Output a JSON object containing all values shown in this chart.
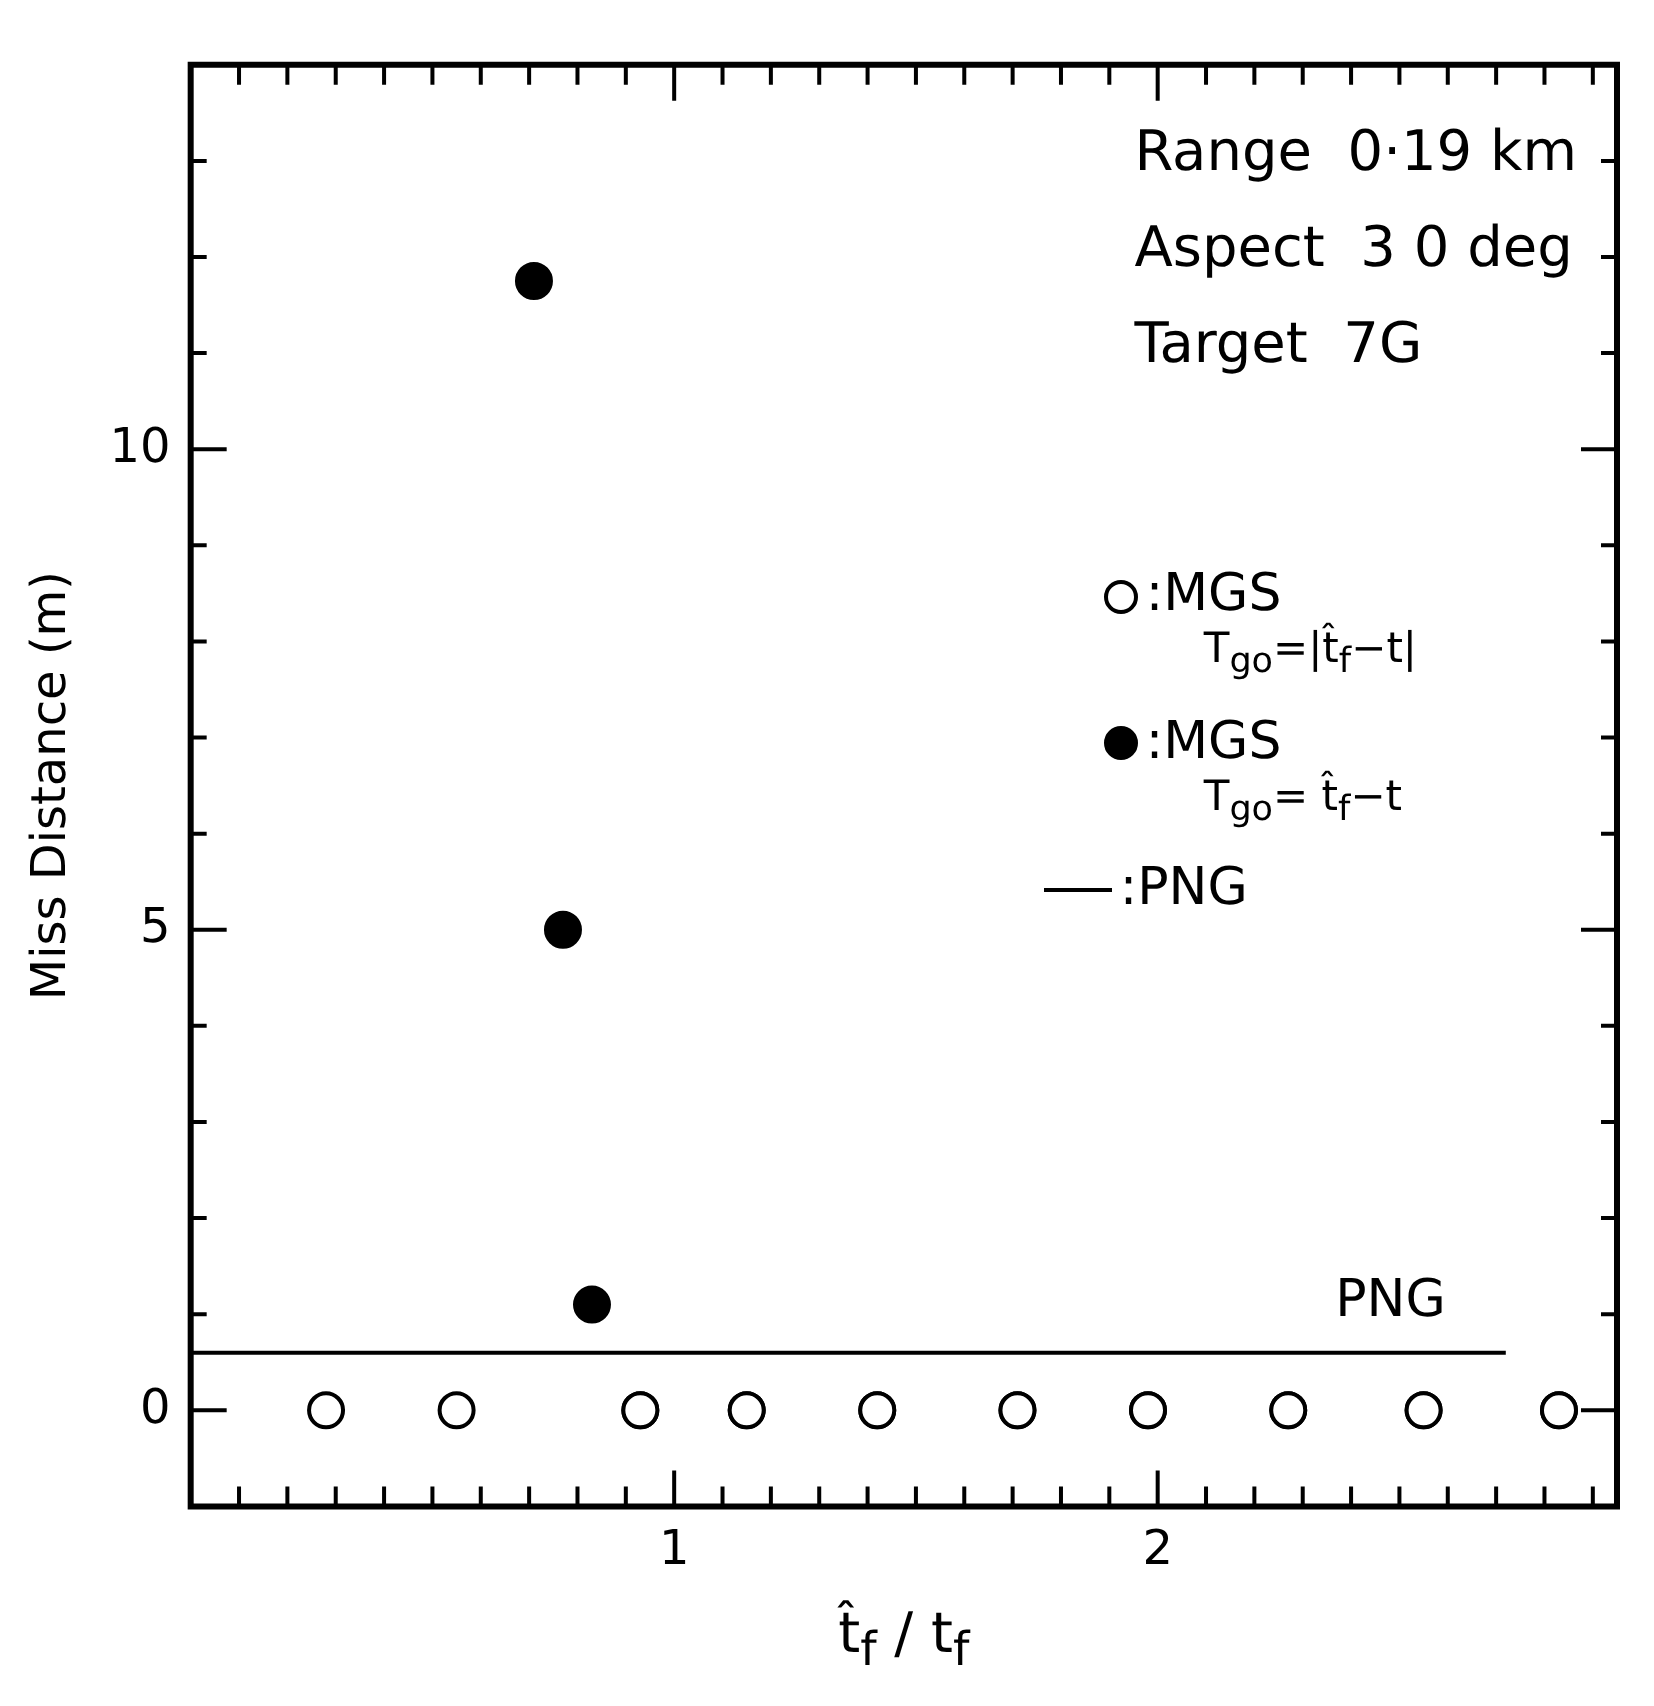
{
  "chart_data": {
    "type": "scatter",
    "xlabel": "t̂$_{f}$ / t$_{f}$",
    "ylabel": "Miss Distance (m)",
    "annotations": [
      "Range  0·19 km",
      "Aspect  3 0 deg",
      "Target  7G",
      {
        "text": "PNG",
        "x": 2.72,
        "y": 0.6
      }
    ],
    "series": [
      {
        "name": ":MGS\nT$_{go}$=|t̂$_{f}$−t|",
        "color": "#ffffff",
        "marker": "circle",
        "x": [
          0.28,
          0.55,
          0.93,
          1.15,
          1.42,
          1.71,
          1.98,
          2.27,
          2.55,
          2.83
        ],
        "values": [
          0,
          0,
          0,
          0,
          0,
          0,
          0,
          0,
          0,
          0
        ]
      },
      {
        "name": ":MGS\nT$_{go}$= t̂$_{f}$−t",
        "color": "#000000",
        "marker": "circle",
        "x": [
          0.71,
          0.77,
          0.83,
          0.93,
          1.15,
          1.42,
          1.71,
          1.98,
          2.27,
          2.55,
          2.83
        ],
        "values": [
          11.75,
          5.0,
          1.1,
          0,
          0,
          0,
          0,
          0,
          0,
          0,
          0
        ]
      },
      {
        "name": ":PNG",
        "type": "line",
        "color": "#000000",
        "marker": "none",
        "x": [
          0,
          2.72
        ],
        "values": [
          0.6,
          0.6
        ]
      }
    ],
    "xlim": [
      0,
      2.95
    ],
    "ylim": [
      -1,
      14
    ],
    "xticks": [
      {
        "value": 0.1,
        "label": null
      },
      {
        "value": 0.2,
        "label": null
      },
      {
        "value": 0.3,
        "label": null
      },
      {
        "value": 0.4,
        "label": null
      },
      {
        "value": 0.5,
        "label": null
      },
      {
        "value": 0.6,
        "label": null
      },
      {
        "value": 0.7,
        "label": null
      },
      {
        "value": 0.8,
        "label": null
      },
      {
        "value": 0.9,
        "label": null
      },
      1,
      {
        "value": 1.1,
        "label": null
      },
      {
        "value": 1.2,
        "label": null
      },
      {
        "value": 1.3,
        "label": null
      },
      {
        "value": 1.4,
        "label": null
      },
      {
        "value": 1.5,
        "label": null
      },
      {
        "value": 1.6,
        "label": null
      },
      {
        "value": 1.7,
        "label": null
      },
      {
        "value": 1.8,
        "label": null
      },
      {
        "value": 1.9,
        "label": null
      },
      2,
      {
        "value": 2.1,
        "label": null
      },
      {
        "value": 2.2,
        "label": null
      },
      {
        "value": 2.3,
        "label": null
      },
      {
        "value": 2.4,
        "label": null
      },
      {
        "value": 2.5,
        "label": null
      },
      {
        "value": 2.6,
        "label": null
      },
      {
        "value": 2.7,
        "label": null
      },
      {
        "value": 2.8,
        "label": null
      },
      {
        "value": 2.9,
        "label": null
      }
    ],
    "yticks": [
      {
        "value": -1,
        "label": null
      },
      0,
      {
        "value": 1,
        "label": null
      },
      {
        "value": 2,
        "label": null
      },
      {
        "value": 3,
        "label": null
      },
      {
        "value": 4,
        "label": null
      },
      5,
      {
        "value": 6,
        "label": null
      },
      {
        "value": 7,
        "label": null
      },
      {
        "value": 8,
        "label": null
      },
      {
        "value": 9,
        "label": null
      },
      10,
      {
        "value": 11,
        "label": null
      },
      {
        "value": 12,
        "label": null
      },
      {
        "value": 13,
        "label": null
      }
    ],
    "grid": false,
    "legend": "top right"
  }
}
